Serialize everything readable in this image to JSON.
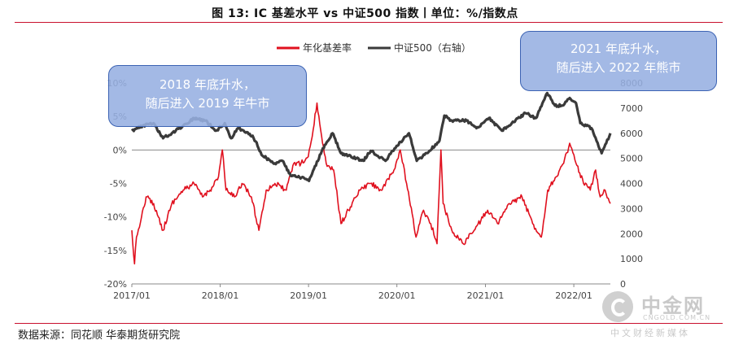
{
  "title": "图 13: IC 基差水平 vs 中证500 指数丨单位：%/指数点",
  "source": "数据来源：同花顺 华泰期货研究院",
  "callouts": [
    {
      "line1": "2018 年底升水，",
      "line2": "随后进入 2019 年牛市"
    },
    {
      "line1": "2021 年底升水，",
      "line2": "随后进入 2022 年熊市"
    }
  ],
  "watermark": {
    "name": "中金网",
    "url": "CNGOLD.COM.CN",
    "sub": "中文财经新媒体"
  },
  "chart_data": {
    "type": "line",
    "legend_position": "top-center",
    "x_range": [
      "2017/01",
      "2022/06"
    ],
    "x_ticks": [
      "2017/01",
      "2018/01",
      "2019/01",
      "2020/01",
      "2021/01",
      "2022/01"
    ],
    "y_left": {
      "range": [
        -20,
        10
      ],
      "ticks": [
        "10%",
        "5%",
        "0%",
        "-5%",
        "-10%",
        "-15%",
        "-20%"
      ]
    },
    "y_right": {
      "range": [
        0,
        8000
      ],
      "ticks": [
        "8000",
        "7000",
        "6000",
        "5000",
        "4000",
        "3000",
        "2000",
        "1000",
        "0"
      ]
    },
    "colors": {
      "basis": "#e0101e",
      "index": "#3a3a3a"
    },
    "series": [
      {
        "name": "年化基差率",
        "axis": "left",
        "points": [
          [
            "2017-01-01",
            -12
          ],
          [
            "2017-01-12",
            -17
          ],
          [
            "2017-01-20",
            -13
          ],
          [
            "2017-02-10",
            -10
          ],
          [
            "2017-03-01",
            -7
          ],
          [
            "2017-04-01",
            -8
          ],
          [
            "2017-05-10",
            -12
          ],
          [
            "2017-06-15",
            -8
          ],
          [
            "2017-08-01",
            -6
          ],
          [
            "2017-09-15",
            -5
          ],
          [
            "2017-10-20",
            -7
          ],
          [
            "2017-11-20",
            -6
          ],
          [
            "2017-12-25",
            -4
          ],
          [
            "2018-01-10",
            0
          ],
          [
            "2018-01-25",
            -6
          ],
          [
            "2018-03-01",
            -7
          ],
          [
            "2018-04-01",
            -5
          ],
          [
            "2018-05-10",
            -7
          ],
          [
            "2018-06-10",
            -12
          ],
          [
            "2018-07-10",
            -6
          ],
          [
            "2018-08-15",
            -5
          ],
          [
            "2018-10-01",
            -6
          ],
          [
            "2018-11-01",
            -2
          ],
          [
            "2018-12-01",
            -2
          ],
          [
            "2018-12-31",
            -1
          ],
          [
            "2019-01-20",
            3
          ],
          [
            "2019-02-05",
            7
          ],
          [
            "2019-02-20",
            3
          ],
          [
            "2019-03-15",
            -2
          ],
          [
            "2019-04-15",
            -3
          ],
          [
            "2019-05-15",
            -11
          ],
          [
            "2019-06-15",
            -9
          ],
          [
            "2019-08-01",
            -6
          ],
          [
            "2019-09-15",
            -5
          ],
          [
            "2019-11-01",
            -6
          ],
          [
            "2019-12-20",
            -3
          ],
          [
            "2020-01-15",
            0
          ],
          [
            "2020-02-10",
            -5
          ],
          [
            "2020-03-20",
            -13
          ],
          [
            "2020-04-20",
            -9
          ],
          [
            "2020-05-20",
            -11
          ],
          [
            "2020-06-15",
            -14
          ],
          [
            "2020-07-01",
            0
          ],
          [
            "2020-07-10",
            -8
          ],
          [
            "2020-08-15",
            -12
          ],
          [
            "2020-10-01",
            -14
          ],
          [
            "2020-11-15",
            -12
          ],
          [
            "2021-01-10",
            -9
          ],
          [
            "2021-02-20",
            -11
          ],
          [
            "2021-04-10",
            -8
          ],
          [
            "2021-06-01",
            -7
          ],
          [
            "2021-07-15",
            -11
          ],
          [
            "2021-08-20",
            -13
          ],
          [
            "2021-09-15",
            -6
          ],
          [
            "2021-10-20",
            -4
          ],
          [
            "2021-11-20",
            -2
          ],
          [
            "2021-12-15",
            1
          ],
          [
            "2022-01-10",
            -2
          ],
          [
            "2022-02-10",
            -5
          ],
          [
            "2022-03-10",
            -6
          ],
          [
            "2022-04-01",
            -3
          ],
          [
            "2022-04-20",
            -7
          ],
          [
            "2022-05-10",
            -6
          ],
          [
            "2022-06-01",
            -8
          ]
        ]
      },
      {
        "name": "中证500（右轴）",
        "axis": "right",
        "points": [
          [
            "2017-01-01",
            6100
          ],
          [
            "2017-02-15",
            6300
          ],
          [
            "2017-04-01",
            6400
          ],
          [
            "2017-05-10",
            5800
          ],
          [
            "2017-06-15",
            6000
          ],
          [
            "2017-08-01",
            6300
          ],
          [
            "2017-09-15",
            6600
          ],
          [
            "2017-11-01",
            6500
          ],
          [
            "2017-12-15",
            6100
          ],
          [
            "2018-01-20",
            6400
          ],
          [
            "2018-02-15",
            5800
          ],
          [
            "2018-03-15",
            6200
          ],
          [
            "2018-05-15",
            5900
          ],
          [
            "2018-06-25",
            5100
          ],
          [
            "2018-08-15",
            4800
          ],
          [
            "2018-09-15",
            4900
          ],
          [
            "2018-10-20",
            4300
          ],
          [
            "2018-12-15",
            4200
          ],
          [
            "2019-01-03",
            4100
          ],
          [
            "2019-02-25",
            5300
          ],
          [
            "2019-04-10",
            6000
          ],
          [
            "2019-05-15",
            5200
          ],
          [
            "2019-06-15",
            5100
          ],
          [
            "2019-08-15",
            4900
          ],
          [
            "2019-09-15",
            5300
          ],
          [
            "2019-11-15",
            4900
          ],
          [
            "2019-12-31",
            5500
          ],
          [
            "2020-02-20",
            6000
          ],
          [
            "2020-03-23",
            4900
          ],
          [
            "2020-05-15",
            5300
          ],
          [
            "2020-06-25",
            5700
          ],
          [
            "2020-07-15",
            6700
          ],
          [
            "2020-08-15",
            6500
          ],
          [
            "2020-10-15",
            6500
          ],
          [
            "2020-11-25",
            6200
          ],
          [
            "2021-01-15",
            6600
          ],
          [
            "2021-03-10",
            6100
          ],
          [
            "2021-04-20",
            6400
          ],
          [
            "2021-06-15",
            6800
          ],
          [
            "2021-07-28",
            6600
          ],
          [
            "2021-09-13",
            7600
          ],
          [
            "2021-10-15",
            7100
          ],
          [
            "2021-11-15",
            7100
          ],
          [
            "2021-12-15",
            7400
          ],
          [
            "2022-01-10",
            7200
          ],
          [
            "2022-01-28",
            6400
          ],
          [
            "2022-03-15",
            6200
          ],
          [
            "2022-04-26",
            5200
          ],
          [
            "2022-05-15",
            5600
          ],
          [
            "2022-06-01",
            6000
          ]
        ]
      }
    ]
  }
}
